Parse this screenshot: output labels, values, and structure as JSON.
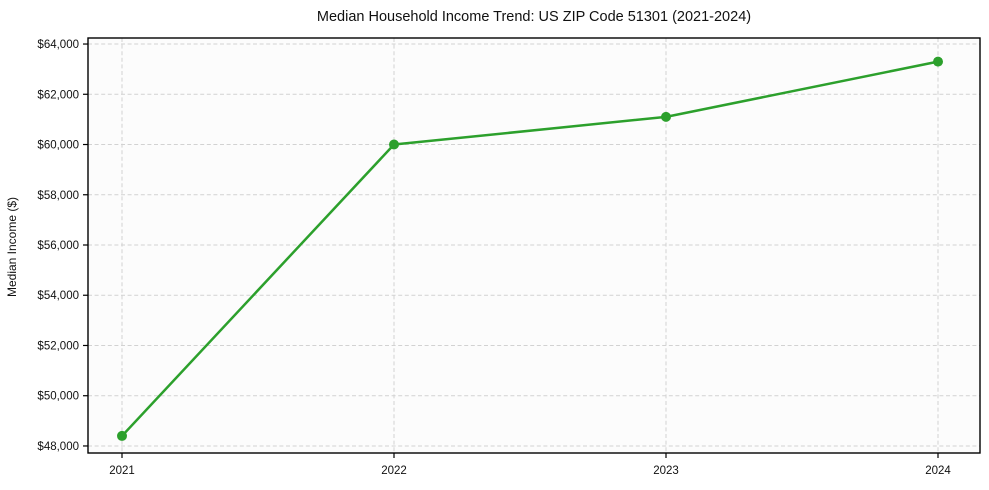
{
  "chart_data": {
    "type": "line",
    "title": "Median Household Income Trend: US ZIP Code 51301 (2021-2024)",
    "xlabel": "",
    "ylabel": "Median Income ($)",
    "x": [
      2021,
      2022,
      2023,
      2024
    ],
    "xtick_labels": [
      "2021",
      "2022",
      "2023",
      "2024"
    ],
    "series": [
      {
        "name": "Median Household Income",
        "values": [
          48400,
          60000,
          61100,
          63300
        ]
      }
    ],
    "yticks": [
      48000,
      50000,
      52000,
      54000,
      56000,
      58000,
      60000,
      62000,
      64000
    ],
    "ytick_labels": [
      "$48,000",
      "$50,000",
      "$52,000",
      "$54,000",
      "$56,000",
      "$58,000",
      "$60,000",
      "$62,000",
      "$64,000"
    ],
    "ylim": [
      47720,
      64240
    ],
    "grid": true,
    "grid_style": "dashed",
    "legend": "none",
    "colors": {
      "line": "#2ca02c",
      "marker": "#2ca02c",
      "grid": "#d2d2d2",
      "spine": "#000000",
      "text": "#111111",
      "figure_background": "#ffffff",
      "plot_background": "#fcfcfc"
    }
  }
}
